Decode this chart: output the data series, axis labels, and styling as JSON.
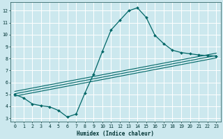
{
  "title": "",
  "xlabel": "Humidex (Indice chaleur)",
  "bg_color": "#cce8ee",
  "line_color": "#006666",
  "grid_color": "#ffffff",
  "xlim": [
    -0.5,
    23.5
  ],
  "ylim": [
    2.7,
    12.7
  ],
  "xticks": [
    0,
    1,
    2,
    3,
    4,
    5,
    6,
    7,
    8,
    9,
    10,
    11,
    12,
    13,
    14,
    15,
    16,
    17,
    18,
    19,
    20,
    21,
    22,
    23
  ],
  "yticks": [
    3,
    4,
    5,
    6,
    7,
    8,
    9,
    10,
    11,
    12
  ],
  "curve1_x": [
    0,
    1,
    2,
    3,
    4,
    5,
    6,
    7,
    8,
    9,
    10,
    11,
    12,
    13,
    14,
    15,
    16,
    17,
    18,
    19,
    20,
    21,
    22,
    23
  ],
  "curve1_y": [
    5.0,
    4.7,
    4.2,
    4.05,
    3.95,
    3.65,
    3.1,
    3.35,
    5.1,
    6.7,
    8.6,
    10.4,
    11.2,
    12.0,
    12.25,
    11.45,
    9.95,
    9.25,
    8.7,
    8.5,
    8.4,
    8.3,
    8.25,
    8.2
  ],
  "line2_x": [
    0,
    23
  ],
  "line2_y": [
    5.05,
    8.25
  ],
  "line3_x": [
    0,
    23
  ],
  "line3_y": [
    5.25,
    8.45
  ],
  "line4_x": [
    0,
    23
  ],
  "line4_y": [
    4.85,
    8.05
  ]
}
